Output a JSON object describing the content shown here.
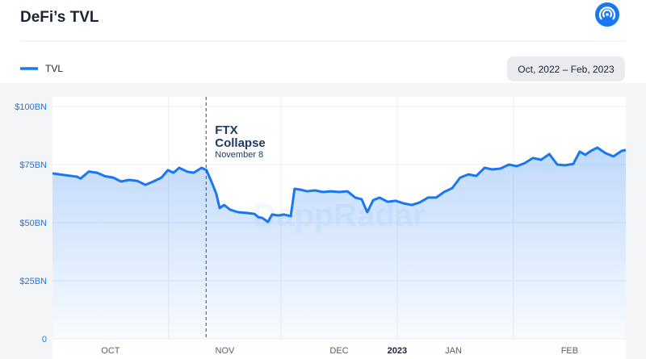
{
  "chart_data": {
    "type": "line",
    "title": "DeFi’s TVL",
    "date_range": "Oct, 2022 – Feb, 2023",
    "watermark": "DappRadar",
    "series": [
      {
        "name": "TVL",
        "color": "#1877f2",
        "x": [
          0,
          3.2,
          6.5,
          7.5,
          9.7,
          11.9,
          14,
          16.2,
          18.3,
          20.5,
          22.6,
          24.8,
          26.9,
          29.1,
          30.8,
          32.3,
          33.8,
          36,
          37.7,
          39.8,
          41.1,
          42.4,
          43.7,
          44.6,
          45.8,
          47.4,
          49.5,
          51.7,
          53.9,
          54.9,
          56,
          57.5,
          58.6,
          60.3,
          61.8,
          63.6,
          64.6,
          66.2,
          67.9,
          70,
          72.2,
          74.3,
          76.5,
          78.7,
          80.8,
          82.5,
          84,
          85.6,
          87.3,
          89.4,
          91.6,
          93.7,
          95.9,
          98,
          100.2,
          102.4,
          104.5,
          106.7,
          108.8,
          111,
          113.1,
          115.3,
          117.4,
          119.6,
          121.8,
          123.9,
          126.1,
          128.2,
          130.4,
          132.6,
          134.7,
          136.8,
          139,
          140.7,
          142.2,
          143.7,
          145.4,
          147.6,
          149.7,
          151.9,
          153
        ],
        "values": [
          71.2,
          70.5,
          69.8,
          69,
          72,
          71.5,
          70,
          69.4,
          67.7,
          68.4,
          68,
          66.3,
          67.7,
          69.4,
          72.6,
          71.5,
          73.6,
          71.9,
          71.5,
          73.6,
          72.6,
          67.7,
          62.5,
          56.3,
          57.6,
          55.6,
          54.5,
          54.2,
          53.8,
          52.4,
          52,
          50.3,
          53.5,
          53.1,
          53.5,
          52.8,
          64.6,
          64.2,
          63.5,
          63.9,
          63.2,
          63.5,
          63.2,
          63.5,
          60.8,
          60.1,
          54.5,
          59.7,
          60.8,
          59,
          59.4,
          58.3,
          57.6,
          58.7,
          60.8,
          60.8,
          63.2,
          64.9,
          69.4,
          70.8,
          70.1,
          73.6,
          72.9,
          73.3,
          75,
          74.3,
          75.7,
          77.8,
          77.1,
          79.5,
          75,
          74.7,
          75.3,
          80.6,
          79.2,
          80.9,
          82.3,
          79.9,
          78.5,
          80.9,
          81.3
        ]
      }
    ],
    "xlim": [
      0,
      153
    ],
    "xticks": [
      {
        "value": 15.5,
        "label": "OCT"
      },
      {
        "value": 46,
        "label": "NOV"
      },
      {
        "value": 76.5,
        "label": "DEC"
      },
      {
        "value": 92,
        "label": "2023"
      },
      {
        "value": 107,
        "label": "JAN"
      },
      {
        "value": 138,
        "label": "FEB"
      }
    ],
    "xgrid": [
      31,
      61,
      92,
      123
    ],
    "ylim": [
      0,
      100
    ],
    "yticks": [
      0,
      {
        "value": 25,
        "label": "$25BN"
      },
      {
        "value": 50,
        "label": "$50BN"
      },
      {
        "value": 75,
        "label": "$75BN"
      },
      {
        "value": 100,
        "label": "$100BN"
      }
    ],
    "annotation": {
      "x": 41,
      "title": [
        "FTX",
        "Collapse"
      ],
      "subtitle": "November 8"
    }
  }
}
